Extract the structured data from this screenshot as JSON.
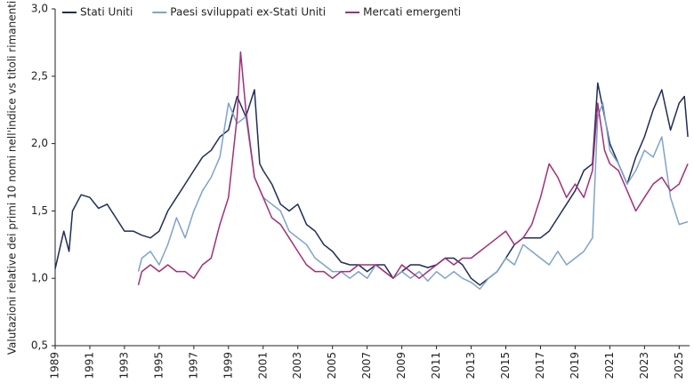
{
  "chart_data": {
    "type": "line",
    "y_label": "Valutazioni relative dei primi 10 nomi nell'indice vs titoli rimanenti",
    "xlim": [
      1989,
      2025.6
    ],
    "xticks": [
      1989,
      1991,
      1993,
      1995,
      1997,
      1999,
      2001,
      2003,
      2005,
      2007,
      2009,
      2011,
      2013,
      2015,
      2017,
      2019,
      2021,
      2023,
      2025
    ],
    "ylim": [
      0.5,
      3.0
    ],
    "yticks": [
      {
        "value": 0.5,
        "label": "0,5"
      },
      {
        "value": 1.0,
        "label": "1,0"
      },
      {
        "value": 1.5,
        "label": "1,5"
      },
      {
        "value": 2.0,
        "label": "2,0"
      },
      {
        "value": 2.5,
        "label": "2,5"
      },
      {
        "value": 3.0,
        "label": "3,0"
      }
    ],
    "grid": false,
    "legend": "top-left",
    "series": [
      {
        "name": "Stati Uniti",
        "color": "#1f2d5a",
        "x": [
          1989.0,
          1989.5,
          1989.8,
          1990.0,
          1990.5,
          1991.0,
          1991.5,
          1992.0,
          1992.5,
          1993.0,
          1993.5,
          1994.0,
          1994.5,
          1995.0,
          1995.5,
          1996.0,
          1996.5,
          1997.0,
          1997.5,
          1998.0,
          1998.5,
          1999.0,
          1999.5,
          2000.0,
          2000.5,
          2000.8,
          2001.0,
          2001.5,
          2002.0,
          2002.5,
          2003.0,
          2003.5,
          2004.0,
          2004.5,
          2005.0,
          2005.5,
          2006.0,
          2006.5,
          2007.0,
          2007.5,
          2008.0,
          2008.5,
          2009.0,
          2009.5,
          2010.0,
          2010.5,
          2011.0,
          2011.5,
          2012.0,
          2012.5,
          2013.0,
          2013.5,
          2014.0,
          2014.5,
          2015.0,
          2015.5,
          2016.0,
          2016.5,
          2017.0,
          2017.5,
          2018.0,
          2018.5,
          2019.0,
          2019.5,
          2020.0,
          2020.3,
          2020.7,
          2021.0,
          2021.5,
          2022.0,
          2022.5,
          2023.0,
          2023.5,
          2024.0,
          2024.5,
          2025.0,
          2025.3,
          2025.5
        ],
        "values": [
          1.07,
          1.35,
          1.2,
          1.5,
          1.62,
          1.6,
          1.52,
          1.55,
          1.45,
          1.35,
          1.35,
          1.32,
          1.3,
          1.35,
          1.5,
          1.6,
          1.7,
          1.8,
          1.9,
          1.95,
          2.05,
          2.1,
          2.35,
          2.2,
          2.4,
          1.85,
          1.8,
          1.7,
          1.55,
          1.5,
          1.55,
          1.4,
          1.35,
          1.25,
          1.2,
          1.12,
          1.1,
          1.1,
          1.05,
          1.1,
          1.1,
          1.0,
          1.05,
          1.1,
          1.1,
          1.08,
          1.1,
          1.15,
          1.15,
          1.1,
          1.0,
          0.95,
          1.0,
          1.05,
          1.15,
          1.25,
          1.3,
          1.3,
          1.3,
          1.35,
          1.45,
          1.55,
          1.65,
          1.8,
          1.85,
          2.45,
          2.2,
          2.0,
          1.85,
          1.7,
          1.9,
          2.05,
          2.25,
          2.4,
          2.1,
          2.3,
          2.35,
          2.05
        ]
      },
      {
        "name": "Paesi sviluppati ex-Stati Uniti",
        "color": "#7ea3cc",
        "x": [
          1993.8,
          1994.0,
          1994.5,
          1995.0,
          1995.5,
          1996.0,
          1996.5,
          1997.0,
          1997.5,
          1998.0,
          1998.5,
          1999.0,
          1999.5,
          2000.0,
          2000.5,
          2001.0,
          2001.5,
          2002.0,
          2002.5,
          2003.0,
          2003.5,
          2004.0,
          2004.5,
          2005.0,
          2005.5,
          2006.0,
          2006.5,
          2007.0,
          2007.5,
          2008.0,
          2008.5,
          2009.0,
          2009.5,
          2010.0,
          2010.5,
          2011.0,
          2011.5,
          2012.0,
          2012.5,
          2013.0,
          2013.5,
          2014.0,
          2014.5,
          2015.0,
          2015.5,
          2016.0,
          2016.5,
          2017.0,
          2017.5,
          2018.0,
          2018.5,
          2019.0,
          2019.5,
          2020.0,
          2020.3,
          2020.6,
          2021.0,
          2021.5,
          2022.0,
          2022.5,
          2023.0,
          2023.5,
          2024.0,
          2024.5,
          2025.0,
          2025.5
        ],
        "values": [
          1.05,
          1.15,
          1.2,
          1.1,
          1.25,
          1.45,
          1.3,
          1.5,
          1.65,
          1.75,
          1.9,
          2.3,
          2.15,
          2.2,
          1.75,
          1.6,
          1.55,
          1.5,
          1.35,
          1.3,
          1.25,
          1.15,
          1.1,
          1.05,
          1.05,
          1.0,
          1.05,
          1.0,
          1.1,
          1.05,
          1.0,
          1.05,
          1.0,
          1.05,
          0.98,
          1.05,
          1.0,
          1.05,
          1.0,
          0.97,
          0.92,
          1.0,
          1.05,
          1.15,
          1.1,
          1.25,
          1.2,
          1.15,
          1.1,
          1.2,
          1.1,
          1.15,
          1.2,
          1.3,
          2.2,
          2.3,
          1.95,
          1.85,
          1.7,
          1.8,
          1.95,
          1.9,
          2.05,
          1.6,
          1.4,
          1.42
        ]
      },
      {
        "name": "Mercati emergenti",
        "color": "#a0307a",
        "x": [
          1993.8,
          1994.0,
          1994.5,
          1995.0,
          1995.5,
          1996.0,
          1996.5,
          1997.0,
          1997.5,
          1998.0,
          1998.5,
          1999.0,
          1999.5,
          1999.7,
          2000.0,
          2000.5,
          2001.0,
          2001.5,
          2002.0,
          2002.5,
          2003.0,
          2003.5,
          2004.0,
          2004.5,
          2005.0,
          2005.5,
          2006.0,
          2006.5,
          2007.0,
          2007.5,
          2008.0,
          2008.5,
          2009.0,
          2009.5,
          2010.0,
          2010.5,
          2011.0,
          2011.5,
          2012.0,
          2012.5,
          2013.0,
          2013.5,
          2014.0,
          2014.5,
          2015.0,
          2015.5,
          2016.0,
          2016.5,
          2017.0,
          2017.5,
          2018.0,
          2018.5,
          2019.0,
          2019.5,
          2020.0,
          2020.3,
          2020.7,
          2021.0,
          2021.5,
          2022.0,
          2022.5,
          2023.0,
          2023.5,
          2024.0,
          2024.5,
          2025.0,
          2025.5
        ],
        "values": [
          0.95,
          1.05,
          1.1,
          1.05,
          1.1,
          1.05,
          1.05,
          1.0,
          1.1,
          1.15,
          1.4,
          1.6,
          2.2,
          2.68,
          2.25,
          1.75,
          1.6,
          1.45,
          1.4,
          1.3,
          1.2,
          1.1,
          1.05,
          1.05,
          1.0,
          1.05,
          1.05,
          1.1,
          1.1,
          1.1,
          1.05,
          1.0,
          1.1,
          1.05,
          1.0,
          1.05,
          1.1,
          1.15,
          1.1,
          1.15,
          1.15,
          1.2,
          1.25,
          1.3,
          1.35,
          1.25,
          1.3,
          1.4,
          1.6,
          1.85,
          1.75,
          1.6,
          1.7,
          1.6,
          1.8,
          2.3,
          1.95,
          1.85,
          1.8,
          1.65,
          1.5,
          1.6,
          1.7,
          1.75,
          1.65,
          1.7,
          1.85
        ]
      }
    ]
  }
}
